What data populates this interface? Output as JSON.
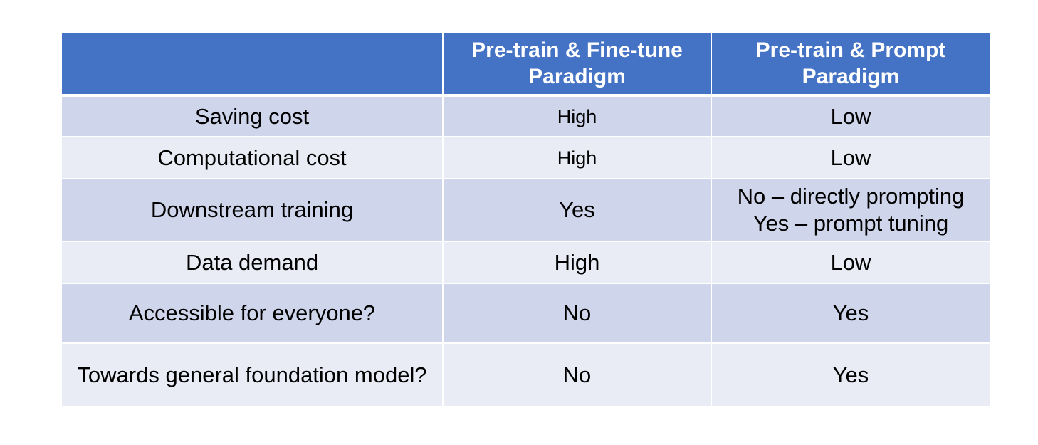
{
  "table": {
    "header": {
      "col1": "",
      "col2_line1": "Pre-train & Fine-tune",
      "col2_line2": "Paradigm",
      "col3_line1": "Pre-train & Prompt",
      "col3_line2": "Paradigm"
    },
    "rows": [
      {
        "label": "Saving cost",
        "finetune": "High",
        "prompt": "Low"
      },
      {
        "label": "Computational cost",
        "finetune": "High",
        "prompt": "Low"
      },
      {
        "label": "Downstream training",
        "finetune": "Yes",
        "prompt_line1": "No – directly prompting",
        "prompt_line2": "Yes – prompt tuning"
      },
      {
        "label": "Data demand",
        "finetune": "High",
        "prompt": "Low"
      },
      {
        "label": "Accessible for everyone?",
        "finetune": "No",
        "prompt": "Yes"
      },
      {
        "label": "Towards general foundation model?",
        "finetune": "No",
        "prompt": "Yes"
      }
    ],
    "colors": {
      "header_bg": "#4472c4",
      "row_odd_bg": "#cfd5ea",
      "row_even_bg": "#e9ebf5"
    }
  }
}
